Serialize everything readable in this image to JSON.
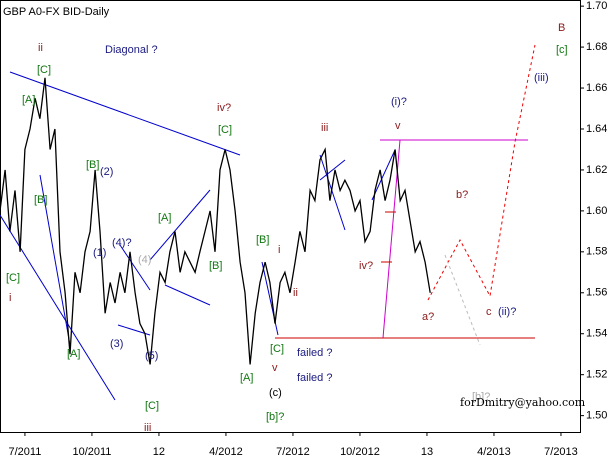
{
  "chart_data": {
    "type": "line",
    "title": "GBP A0-FX BID-Daily",
    "series": [
      {
        "name": "GBP A0-FX BID-Daily",
        "color": "#000000",
        "x": [
          2011.407,
          2011.426,
          2011.444,
          2011.463,
          2011.482,
          2011.5,
          2011.519,
          2011.538,
          2011.556,
          2011.575,
          2011.594,
          2011.612,
          2011.631,
          2011.65,
          2011.668,
          2011.687,
          2011.706,
          2011.724,
          2011.743,
          2011.762,
          2011.78,
          2011.799,
          2011.818,
          2011.836,
          2011.855,
          2011.873,
          2011.892,
          2011.911,
          2011.929,
          2011.948,
          2011.967,
          2011.985,
          2012.004,
          2012.023,
          2012.041,
          2012.06,
          2012.079,
          2012.097,
          2012.116,
          2012.135,
          2012.153,
          2012.172,
          2012.191,
          2012.209,
          2012.228,
          2012.247,
          2012.265,
          2012.284,
          2012.303,
          2012.321,
          2012.34,
          2012.359,
          2012.377,
          2012.396,
          2012.414,
          2012.433,
          2012.452,
          2012.47,
          2012.489,
          2012.508,
          2012.526,
          2012.545,
          2012.564,
          2012.582,
          2012.601,
          2012.62,
          2012.638,
          2012.657,
          2012.676,
          2012.694,
          2012.713,
          2012.732,
          2012.75,
          2012.769,
          2012.788,
          2012.806,
          2012.825,
          2012.844,
          2012.862,
          2012.881,
          2012.9,
          2012.918,
          2012.937,
          2012.956,
          2012.974,
          2012.993,
          2013.012
        ],
        "values": [
          1.6,
          1.62,
          1.59,
          1.61,
          1.58,
          1.63,
          1.64,
          1.655,
          1.645,
          1.665,
          1.63,
          1.64,
          1.58,
          1.56,
          1.53,
          1.57,
          1.56,
          1.58,
          1.59,
          1.62,
          1.59,
          1.55,
          1.565,
          1.555,
          1.57,
          1.56,
          1.58,
          1.56,
          1.545,
          1.54,
          1.525,
          1.55,
          1.57,
          1.565,
          1.58,
          1.59,
          1.57,
          1.58,
          1.575,
          1.57,
          1.58,
          1.59,
          1.6,
          1.58,
          1.62,
          1.63,
          1.62,
          1.6,
          1.575,
          1.56,
          1.525,
          1.55,
          1.565,
          1.575,
          1.565,
          1.545,
          1.565,
          1.57,
          1.56,
          1.575,
          1.59,
          1.58,
          1.61,
          1.605,
          1.625,
          1.63,
          1.605,
          1.62,
          1.61,
          1.615,
          1.61,
          1.6,
          1.605,
          1.585,
          1.59,
          1.61,
          1.62,
          1.605,
          1.615,
          1.63,
          1.605,
          1.61,
          1.595,
          1.58,
          1.585,
          1.575,
          1.56
        ]
      }
    ],
    "xlim": [
      2011.407,
      2013.571
    ],
    "xticks": [
      {
        "value": 2011.5,
        "label": "7/2011"
      },
      {
        "value": 2011.75,
        "label": "10/2011"
      },
      {
        "value": 2012.0,
        "label": "12"
      },
      {
        "value": 2012.25,
        "label": "4/2012"
      },
      {
        "value": 2012.5,
        "label": "7/2012"
      },
      {
        "value": 2012.75,
        "label": "10/2012"
      },
      {
        "value": 2013.0,
        "label": "13"
      },
      {
        "value": 2013.25,
        "label": "4/2013"
      },
      {
        "value": 2013.5,
        "label": "7/2013"
      }
    ],
    "ylim": [
      1.492,
      1.703
    ],
    "yticks": [
      {
        "value": 1.5,
        "label": "1.50"
      },
      1.52,
      1.54,
      1.56,
      1.58,
      {
        "value": 1.6,
        "label": "1.60"
      },
      1.62,
      1.64,
      1.66,
      1.68,
      {
        "value": 1.7,
        "label": "1.70"
      }
    ],
    "annotations": [
      "B",
      "[c]",
      "(iii)",
      "ii",
      "Diagonal ?",
      "[C]",
      "[A]",
      "iv?",
      "[C]",
      "iii",
      "(i)?",
      "v",
      "[B]",
      "(2)",
      "[B]",
      "b?",
      "[A]",
      "[B]",
      "(4)?",
      "i",
      "(1)",
      "(4)",
      "[B]",
      "iv?",
      "[C]",
      "i",
      "ii",
      "a?",
      "c",
      "(ii)?",
      "(3)",
      "[C]",
      "failed ?",
      "[A]",
      "(5)",
      "[A]",
      "v",
      "failed ?",
      "(c)",
      "[b]?",
      "[C]",
      "iii",
      "[b]?",
      "forDmitry@yahoo.com"
    ]
  }
}
